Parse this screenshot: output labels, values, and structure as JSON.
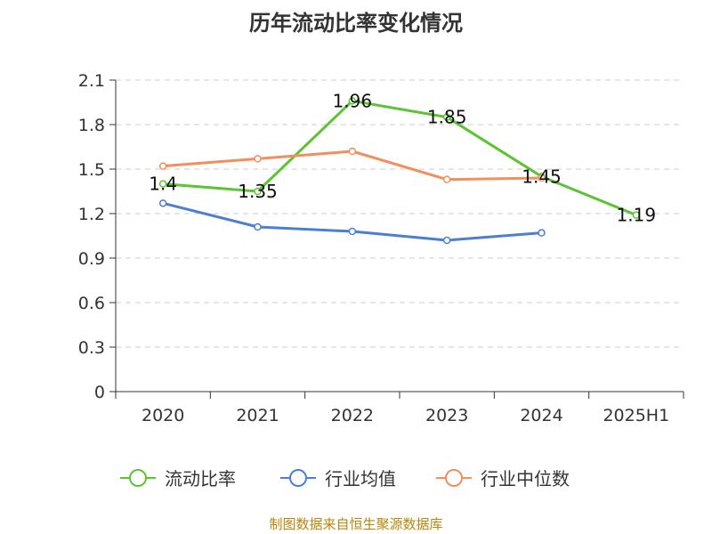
{
  "chart_data": {
    "type": "line",
    "title": "历年流动比率变化情况",
    "categories": [
      "2020",
      "2021",
      "2022",
      "2023",
      "2024",
      "2025H1"
    ],
    "ylim": [
      0,
      2.1
    ],
    "yticks": [
      "0",
      "0.3",
      "0.6",
      "0.9",
      "1.2",
      "1.5",
      "1.8",
      "2.1"
    ],
    "grid": true,
    "legend_position": "bottom",
    "series": [
      {
        "name": "流动比率",
        "color": "#5cc433",
        "values": [
          1.4,
          1.35,
          1.96,
          1.85,
          1.45,
          1.19
        ],
        "labels": [
          "1.4",
          "1.35",
          "1.96",
          "1.85",
          "1.45",
          "1.19"
        ]
      },
      {
        "name": "行业均值",
        "color": "#4a7fd4",
        "values": [
          1.27,
          1.11,
          1.08,
          1.02,
          1.07,
          null
        ]
      },
      {
        "name": "行业中位数",
        "color": "#f28f5c",
        "values": [
          1.52,
          1.57,
          1.62,
          1.43,
          1.44,
          null
        ]
      }
    ]
  },
  "source": "制图数据来自恒生聚源数据库"
}
